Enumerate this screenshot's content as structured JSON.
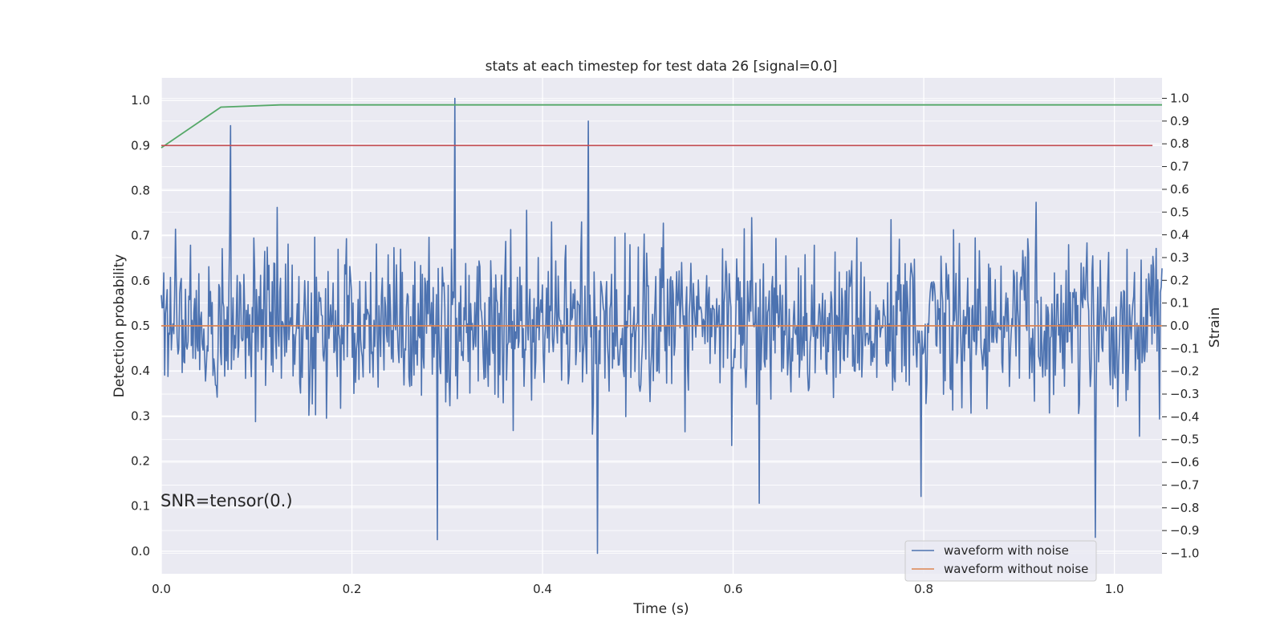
{
  "chart_data": {
    "type": "line",
    "title": "stats at each timestep for test data 26 [signal=0.0]",
    "xlabel": "Time (s)",
    "ylabel_left": "Detection probability",
    "ylabel_right": "Strain",
    "annotation": "SNR=tensor(0.)",
    "xlim": [
      0.0,
      1.05
    ],
    "ylim_left": [
      -0.05,
      1.05
    ],
    "ylim_right": [
      -1.09,
      1.09
    ],
    "x_ticks": [
      "0.0",
      "0.2",
      "0.4",
      "0.6",
      "0.8",
      "1.0"
    ],
    "y_ticks_left": [
      "0.0",
      "0.1",
      "0.2",
      "0.3",
      "0.4",
      "0.5",
      "0.6",
      "0.7",
      "0.8",
      "0.9",
      "1.0"
    ],
    "y_ticks_right": [
      "−1.0",
      "−0.9",
      "−0.8",
      "−0.7",
      "−0.6",
      "−0.5",
      "−0.4",
      "−0.3",
      "−0.2",
      "−0.1",
      "0.0",
      "0.1",
      "0.2",
      "0.3",
      "0.4",
      "0.5",
      "0.6",
      "0.7",
      "0.8",
      "0.9",
      "1.0"
    ],
    "grid": true,
    "legend_position": "lower-right",
    "series": [
      {
        "name": "waveform with noise",
        "axis": "right",
        "color": "#4c72b0",
        "peaks": [
          [
            0.073,
            0.88
          ],
          [
            0.308,
            1.0
          ],
          [
            0.448,
            0.9
          ],
          [
            0.29,
            -0.94
          ],
          [
            0.458,
            -1.0
          ],
          [
            0.98,
            -0.93
          ],
          [
            0.627,
            -0.78
          ],
          [
            0.797,
            -0.75
          ]
        ]
      },
      {
        "name": "waveform without noise",
        "axis": "right",
        "color": "#dd8452",
        "x": [
          0.0,
          1.05
        ],
        "y": [
          0.0,
          0.0
        ]
      },
      {
        "name": "",
        "axis": "left",
        "color": "#55a868",
        "x": [
          0.0,
          0.0625,
          0.125,
          0.25,
          0.5,
          0.75,
          1.0,
          1.05
        ],
        "y": [
          0.895,
          0.985,
          0.99,
          0.99,
          0.99,
          0.99,
          0.99,
          0.99
        ]
      },
      {
        "name": "",
        "axis": "left",
        "color": "#c44e52",
        "x": [
          0.0,
          1.04
        ],
        "y": [
          0.9,
          0.9
        ]
      }
    ]
  }
}
